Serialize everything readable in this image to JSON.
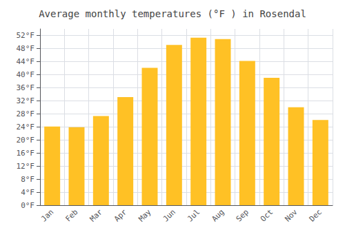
{
  "chart_data": {
    "type": "bar",
    "title": "Average monthly temperatures (°F ) in Rosendal",
    "categories": [
      "Jan",
      "Feb",
      "Mar",
      "Apr",
      "May",
      "Jun",
      "Jul",
      "Aug",
      "Sep",
      "Oct",
      "Nov",
      "Dec"
    ],
    "values": [
      24.1,
      23.9,
      27.3,
      33.1,
      42.1,
      49.1,
      51.3,
      50.9,
      44.2,
      39.0,
      30.0,
      26.1
    ],
    "color": "#FFC125",
    "ylim": [
      0,
      54
    ],
    "yticks": [
      {
        "value": 0,
        "label": "0°F"
      },
      {
        "value": 4,
        "label": "4°F"
      },
      {
        "value": 8,
        "label": "8°F"
      },
      {
        "value": 12,
        "label": "12°F"
      },
      {
        "value": 16,
        "label": "16°F"
      },
      {
        "value": 20,
        "label": "20°F"
      },
      {
        "value": 24,
        "label": "24°F"
      },
      {
        "value": 28,
        "label": "28°F"
      },
      {
        "value": 32,
        "label": "32°F"
      },
      {
        "value": 36,
        "label": "36°F"
      },
      {
        "value": 40,
        "label": "40°F"
      },
      {
        "value": 44,
        "label": "44°F"
      },
      {
        "value": 48,
        "label": "48°F"
      },
      {
        "value": 52,
        "label": "52°F"
      }
    ],
    "grid": true
  }
}
